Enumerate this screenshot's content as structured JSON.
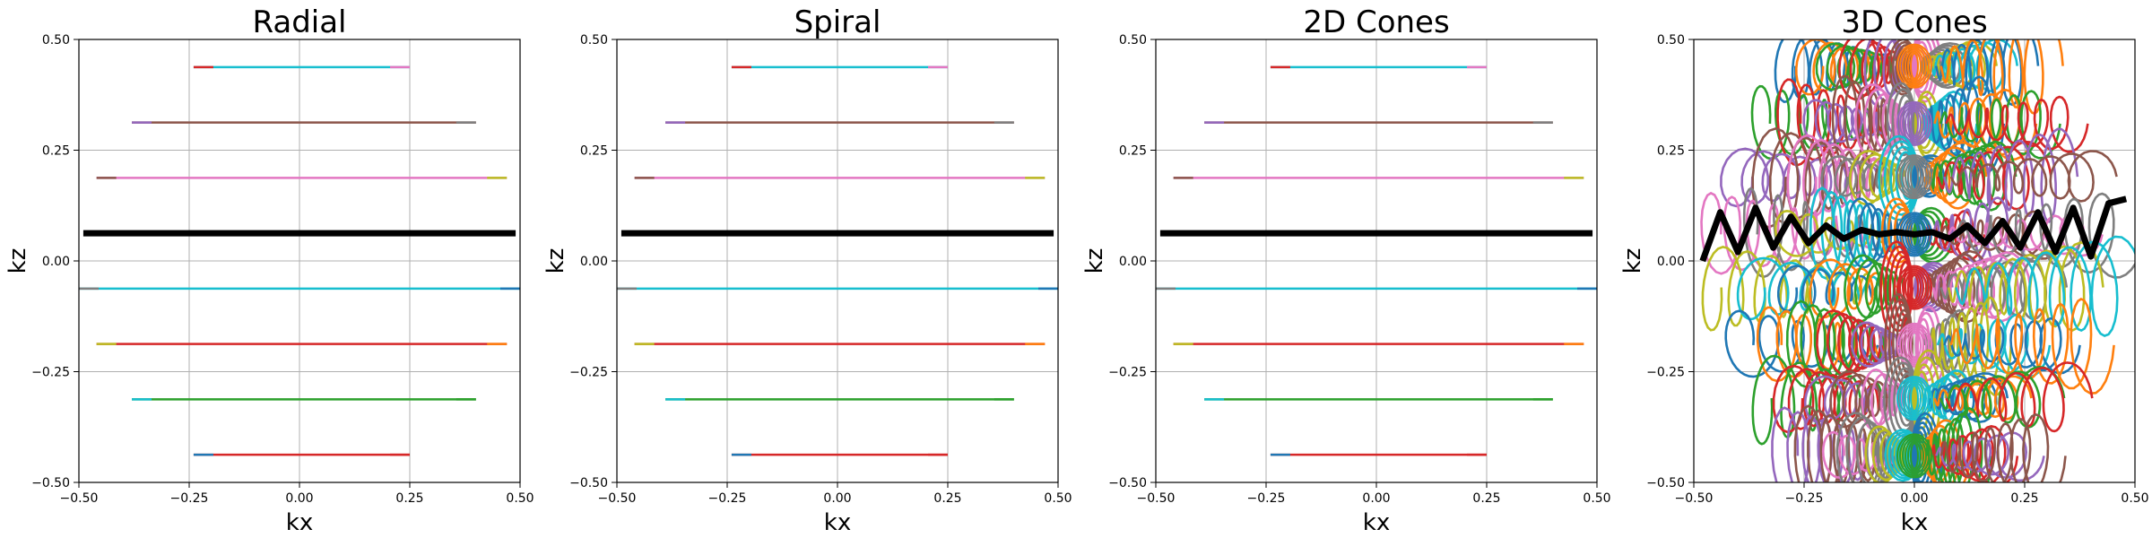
{
  "colors": {
    "grid": "#b0b0b0",
    "frame": "#000000",
    "highlight": "#000000",
    "palette": [
      "#1f77b4",
      "#ff7f0e",
      "#2ca02c",
      "#d62728",
      "#9467bd",
      "#8c564b",
      "#e377c2",
      "#7f7f7f",
      "#bcbd22",
      "#17becf"
    ]
  },
  "chart_data": [
    {
      "type": "line",
      "title": "Radial",
      "xlabel": "kx",
      "ylabel": "kz",
      "xlim": [
        -0.5,
        0.5
      ],
      "ylim": [
        -0.5,
        0.5
      ],
      "xticks": [
        "−0.50",
        "−0.25",
        "0.00",
        "0.25",
        "0.50"
      ],
      "yticks": [
        "−0.50",
        "−0.25",
        "0.00",
        "0.25",
        "0.50"
      ],
      "grid": true,
      "series": [
        {
          "color": "#17becf",
          "x": [
            -0.24,
            0.25
          ],
          "y": [
            0.4375,
            0.4375
          ]
        },
        {
          "color": "#8c564b",
          "x": [
            -0.38,
            0.4
          ],
          "y": [
            0.3125,
            0.3125
          ]
        },
        {
          "color": "#e377c2",
          "x": [
            -0.46,
            0.47
          ],
          "y": [
            0.1875,
            0.1875
          ]
        },
        {
          "color": "#000000",
          "x": [
            -0.49,
            0.49
          ],
          "y": [
            0.0625,
            0.0625
          ],
          "highlight": true
        },
        {
          "color": "#17becf",
          "x": [
            -0.5,
            0.5
          ],
          "y": [
            -0.0625,
            -0.0625
          ]
        },
        {
          "color": "#d62728",
          "x": [
            -0.46,
            0.47
          ],
          "y": [
            -0.1875,
            -0.1875
          ]
        },
        {
          "color": "#2ca02c",
          "x": [
            -0.38,
            0.4
          ],
          "y": [
            -0.3125,
            -0.3125
          ]
        },
        {
          "color": "#d62728",
          "x": [
            -0.24,
            0.25
          ],
          "y": [
            -0.4375,
            -0.4375
          ]
        }
      ]
    },
    {
      "type": "line",
      "title": "Spiral",
      "xlabel": "kx",
      "ylabel": "kz",
      "xlim": [
        -0.5,
        0.5
      ],
      "ylim": [
        -0.5,
        0.5
      ],
      "xticks": [
        "−0.50",
        "−0.25",
        "0.00",
        "0.25",
        "0.50"
      ],
      "yticks": [
        "−0.50",
        "−0.25",
        "0.00",
        "0.25",
        "0.50"
      ],
      "grid": true,
      "series": [
        {
          "color": "#17becf",
          "x": [
            -0.24,
            0.25
          ],
          "y": [
            0.4375,
            0.4375
          ]
        },
        {
          "color": "#8c564b",
          "x": [
            -0.39,
            0.4
          ],
          "y": [
            0.3125,
            0.3125
          ]
        },
        {
          "color": "#e377c2",
          "x": [
            -0.46,
            0.47
          ],
          "y": [
            0.1875,
            0.1875
          ]
        },
        {
          "color": "#000000",
          "x": [
            -0.49,
            0.49
          ],
          "y": [
            0.0625,
            0.0625
          ],
          "highlight": true
        },
        {
          "color": "#17becf",
          "x": [
            -0.5,
            0.5
          ],
          "y": [
            -0.0625,
            -0.0625
          ]
        },
        {
          "color": "#d62728",
          "x": [
            -0.46,
            0.47
          ],
          "y": [
            -0.1875,
            -0.1875
          ]
        },
        {
          "color": "#2ca02c",
          "x": [
            -0.39,
            0.4
          ],
          "y": [
            -0.3125,
            -0.3125
          ]
        },
        {
          "color": "#d62728",
          "x": [
            -0.24,
            0.25
          ],
          "y": [
            -0.4375,
            -0.4375
          ]
        }
      ]
    },
    {
      "type": "line",
      "title": "2D Cones",
      "xlabel": "kx",
      "ylabel": "kz",
      "xlim": [
        -0.5,
        0.5
      ],
      "ylim": [
        -0.5,
        0.5
      ],
      "xticks": [
        "−0.50",
        "−0.25",
        "0.00",
        "0.25",
        "0.50"
      ],
      "yticks": [
        "−0.50",
        "−0.25",
        "0.00",
        "0.25",
        "0.50"
      ],
      "grid": true,
      "series": [
        {
          "color": "#17becf",
          "x": [
            -0.24,
            0.25
          ],
          "y": [
            0.4375,
            0.4375
          ]
        },
        {
          "color": "#8c564b",
          "x": [
            -0.39,
            0.4
          ],
          "y": [
            0.3125,
            0.3125
          ]
        },
        {
          "color": "#e377c2",
          "x": [
            -0.46,
            0.47
          ],
          "y": [
            0.1875,
            0.1875
          ]
        },
        {
          "color": "#000000",
          "x": [
            -0.49,
            0.49
          ],
          "y": [
            0.0625,
            0.0625
          ],
          "highlight": true
        },
        {
          "color": "#17becf",
          "x": [
            -0.5,
            0.5
          ],
          "y": [
            -0.0625,
            -0.0625
          ]
        },
        {
          "color": "#d62728",
          "x": [
            -0.46,
            0.47
          ],
          "y": [
            -0.1875,
            -0.1875
          ]
        },
        {
          "color": "#2ca02c",
          "x": [
            -0.39,
            0.4
          ],
          "y": [
            -0.3125,
            -0.3125
          ]
        },
        {
          "color": "#d62728",
          "x": [
            -0.24,
            0.25
          ],
          "y": [
            -0.4375,
            -0.4375
          ]
        }
      ]
    },
    {
      "type": "line",
      "title": "3D Cones",
      "xlabel": "kx",
      "ylabel": "kz",
      "xlim": [
        -0.5,
        0.5
      ],
      "ylim": [
        -0.5,
        0.5
      ],
      "xticks": [
        "−0.50",
        "−0.25",
        "0.00",
        "0.25",
        "0.50"
      ],
      "yticks": [
        "−0.50",
        "−0.25",
        "0.00",
        "0.25",
        "0.50"
      ],
      "grid": true,
      "description": "dense overlapping 3D cone interleaves (coils), one highlighted black trajectory near kz≈0.07",
      "cone_bands": [
        0.44,
        0.31,
        0.19,
        0.06,
        -0.06,
        -0.19,
        -0.31,
        -0.44
      ],
      "highlight_series": {
        "color": "#000000",
        "x": [
          -0.48,
          -0.44,
          -0.4,
          -0.36,
          -0.32,
          -0.28,
          -0.24,
          -0.2,
          -0.16,
          -0.12,
          -0.08,
          -0.04,
          0.0,
          0.04,
          0.08,
          0.12,
          0.16,
          0.2,
          0.24,
          0.28,
          0.32,
          0.36,
          0.4,
          0.44,
          0.48
        ],
        "y": [
          0.0,
          0.11,
          0.02,
          0.12,
          0.03,
          0.1,
          0.04,
          0.08,
          0.05,
          0.07,
          0.06,
          0.065,
          0.06,
          0.065,
          0.05,
          0.08,
          0.04,
          0.09,
          0.03,
          0.11,
          0.02,
          0.12,
          0.01,
          0.13,
          0.14
        ]
      }
    }
  ]
}
